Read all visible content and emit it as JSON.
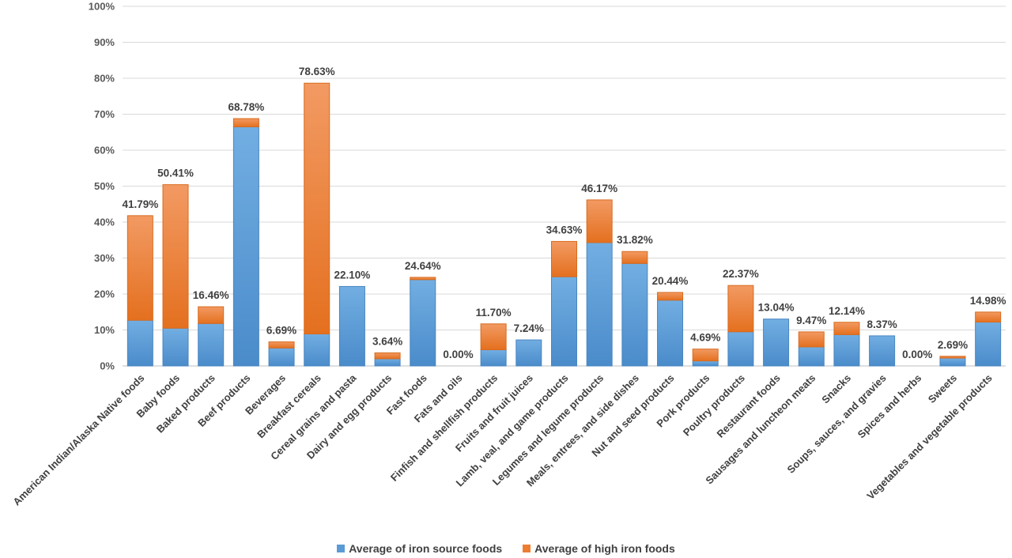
{
  "chart_data": {
    "type": "bar",
    "stacked": true,
    "categories": [
      "American Indian/Alaska Native foods",
      "Baby foods",
      "Baked products",
      "Beef products",
      "Beverages",
      "Breakfast cereals",
      "Cereal grains and pasta",
      "Dairy and egg products",
      "Fast foods",
      "Fats and oils",
      "Finfish and shellfish products",
      "Fruits and fruit juices",
      "Lamb, veal, and game products",
      "Legumes and legume products",
      "Meals, entrees, and side dishes",
      "Nut and seed products",
      "Pork products",
      "Poultry products",
      "Restaurant foods",
      "Sausages and luncheon meats",
      "Snacks",
      "Soups, sauces, and gravies",
      "Spices and herbs",
      "Sweets",
      "Vegetables and vegetable products"
    ],
    "series": [
      {
        "name": "Average of iron source foods",
        "color": "#5B9BD5",
        "values": [
          12.7,
          10.5,
          11.8,
          66.5,
          5.0,
          8.9,
          22.1,
          2.0,
          24.0,
          0.0,
          4.5,
          7.24,
          24.8,
          34.3,
          28.5,
          18.3,
          1.4,
          9.5,
          13.04,
          5.3,
          8.7,
          8.37,
          0.0,
          2.2,
          12.2
        ]
      },
      {
        "name": "Average of high iron foods",
        "color": "#ED7D31",
        "values": [
          29.09,
          39.91,
          4.66,
          2.28,
          1.69,
          69.73,
          0.0,
          1.64,
          0.64,
          0.0,
          7.2,
          0.0,
          9.83,
          11.87,
          3.32,
          2.14,
          3.29,
          12.87,
          0.0,
          4.17,
          3.44,
          0.0,
          0.0,
          0.49,
          2.78
        ]
      }
    ],
    "totals_labels": [
      "41.79%",
      "50.41%",
      "16.46%",
      "68.78%",
      "6.69%",
      "78.63%",
      "22.10%",
      "3.64%",
      "24.64%",
      "0.00%",
      "11.70%",
      "7.24%",
      "34.63%",
      "46.17%",
      "31.82%",
      "20.44%",
      "4.69%",
      "22.37%",
      "13.04%",
      "9.47%",
      "12.14%",
      "8.37%",
      "0.00%",
      "2.69%",
      "14.98%"
    ],
    "y_ticks": [
      "0%",
      "10%",
      "20%",
      "30%",
      "40%",
      "50%",
      "60%",
      "70%",
      "80%",
      "90%",
      "100%"
    ],
    "ylim": [
      0,
      100
    ],
    "grid": true,
    "legend_position": "bottom"
  }
}
